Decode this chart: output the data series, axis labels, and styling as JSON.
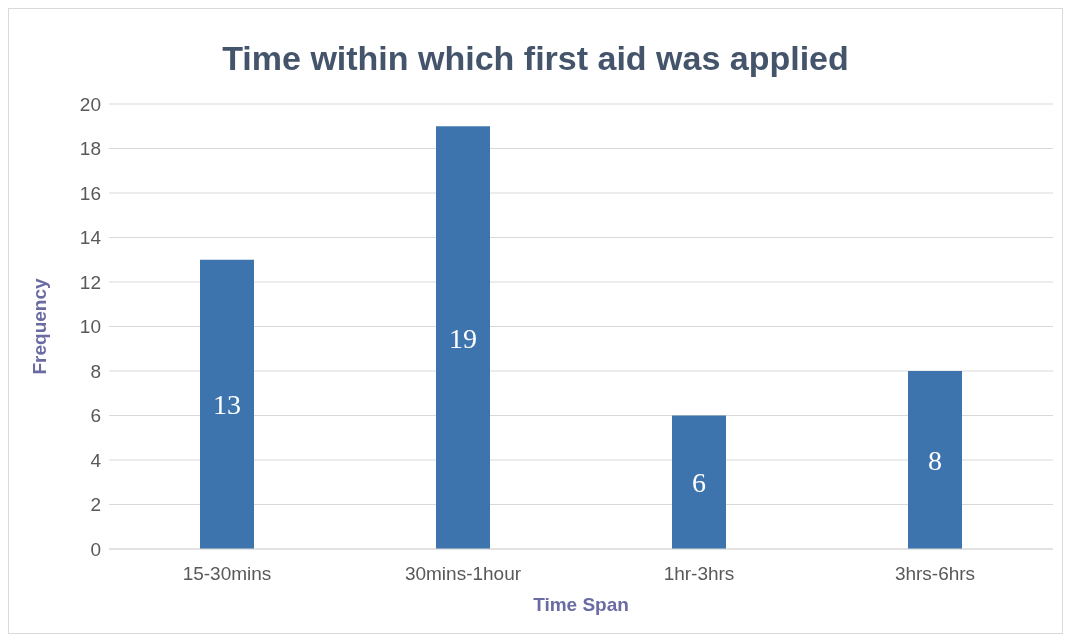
{
  "chart_data": {
    "type": "bar",
    "title": "Time within which first aid was applied",
    "xlabel": "Time Span",
    "ylabel": "Frequency",
    "categories": [
      "15-30mins",
      "30mins-1hour",
      "1hr-3hrs",
      "3hrs-6hrs"
    ],
    "values": [
      13,
      19,
      6,
      8
    ],
    "color": "#3e74ad",
    "ylim": [
      0,
      20
    ],
    "yticks": [
      0,
      2,
      4,
      6,
      8,
      10,
      12,
      14,
      16,
      18,
      20
    ],
    "grid": "y",
    "data_labels": true,
    "legend": false
  }
}
